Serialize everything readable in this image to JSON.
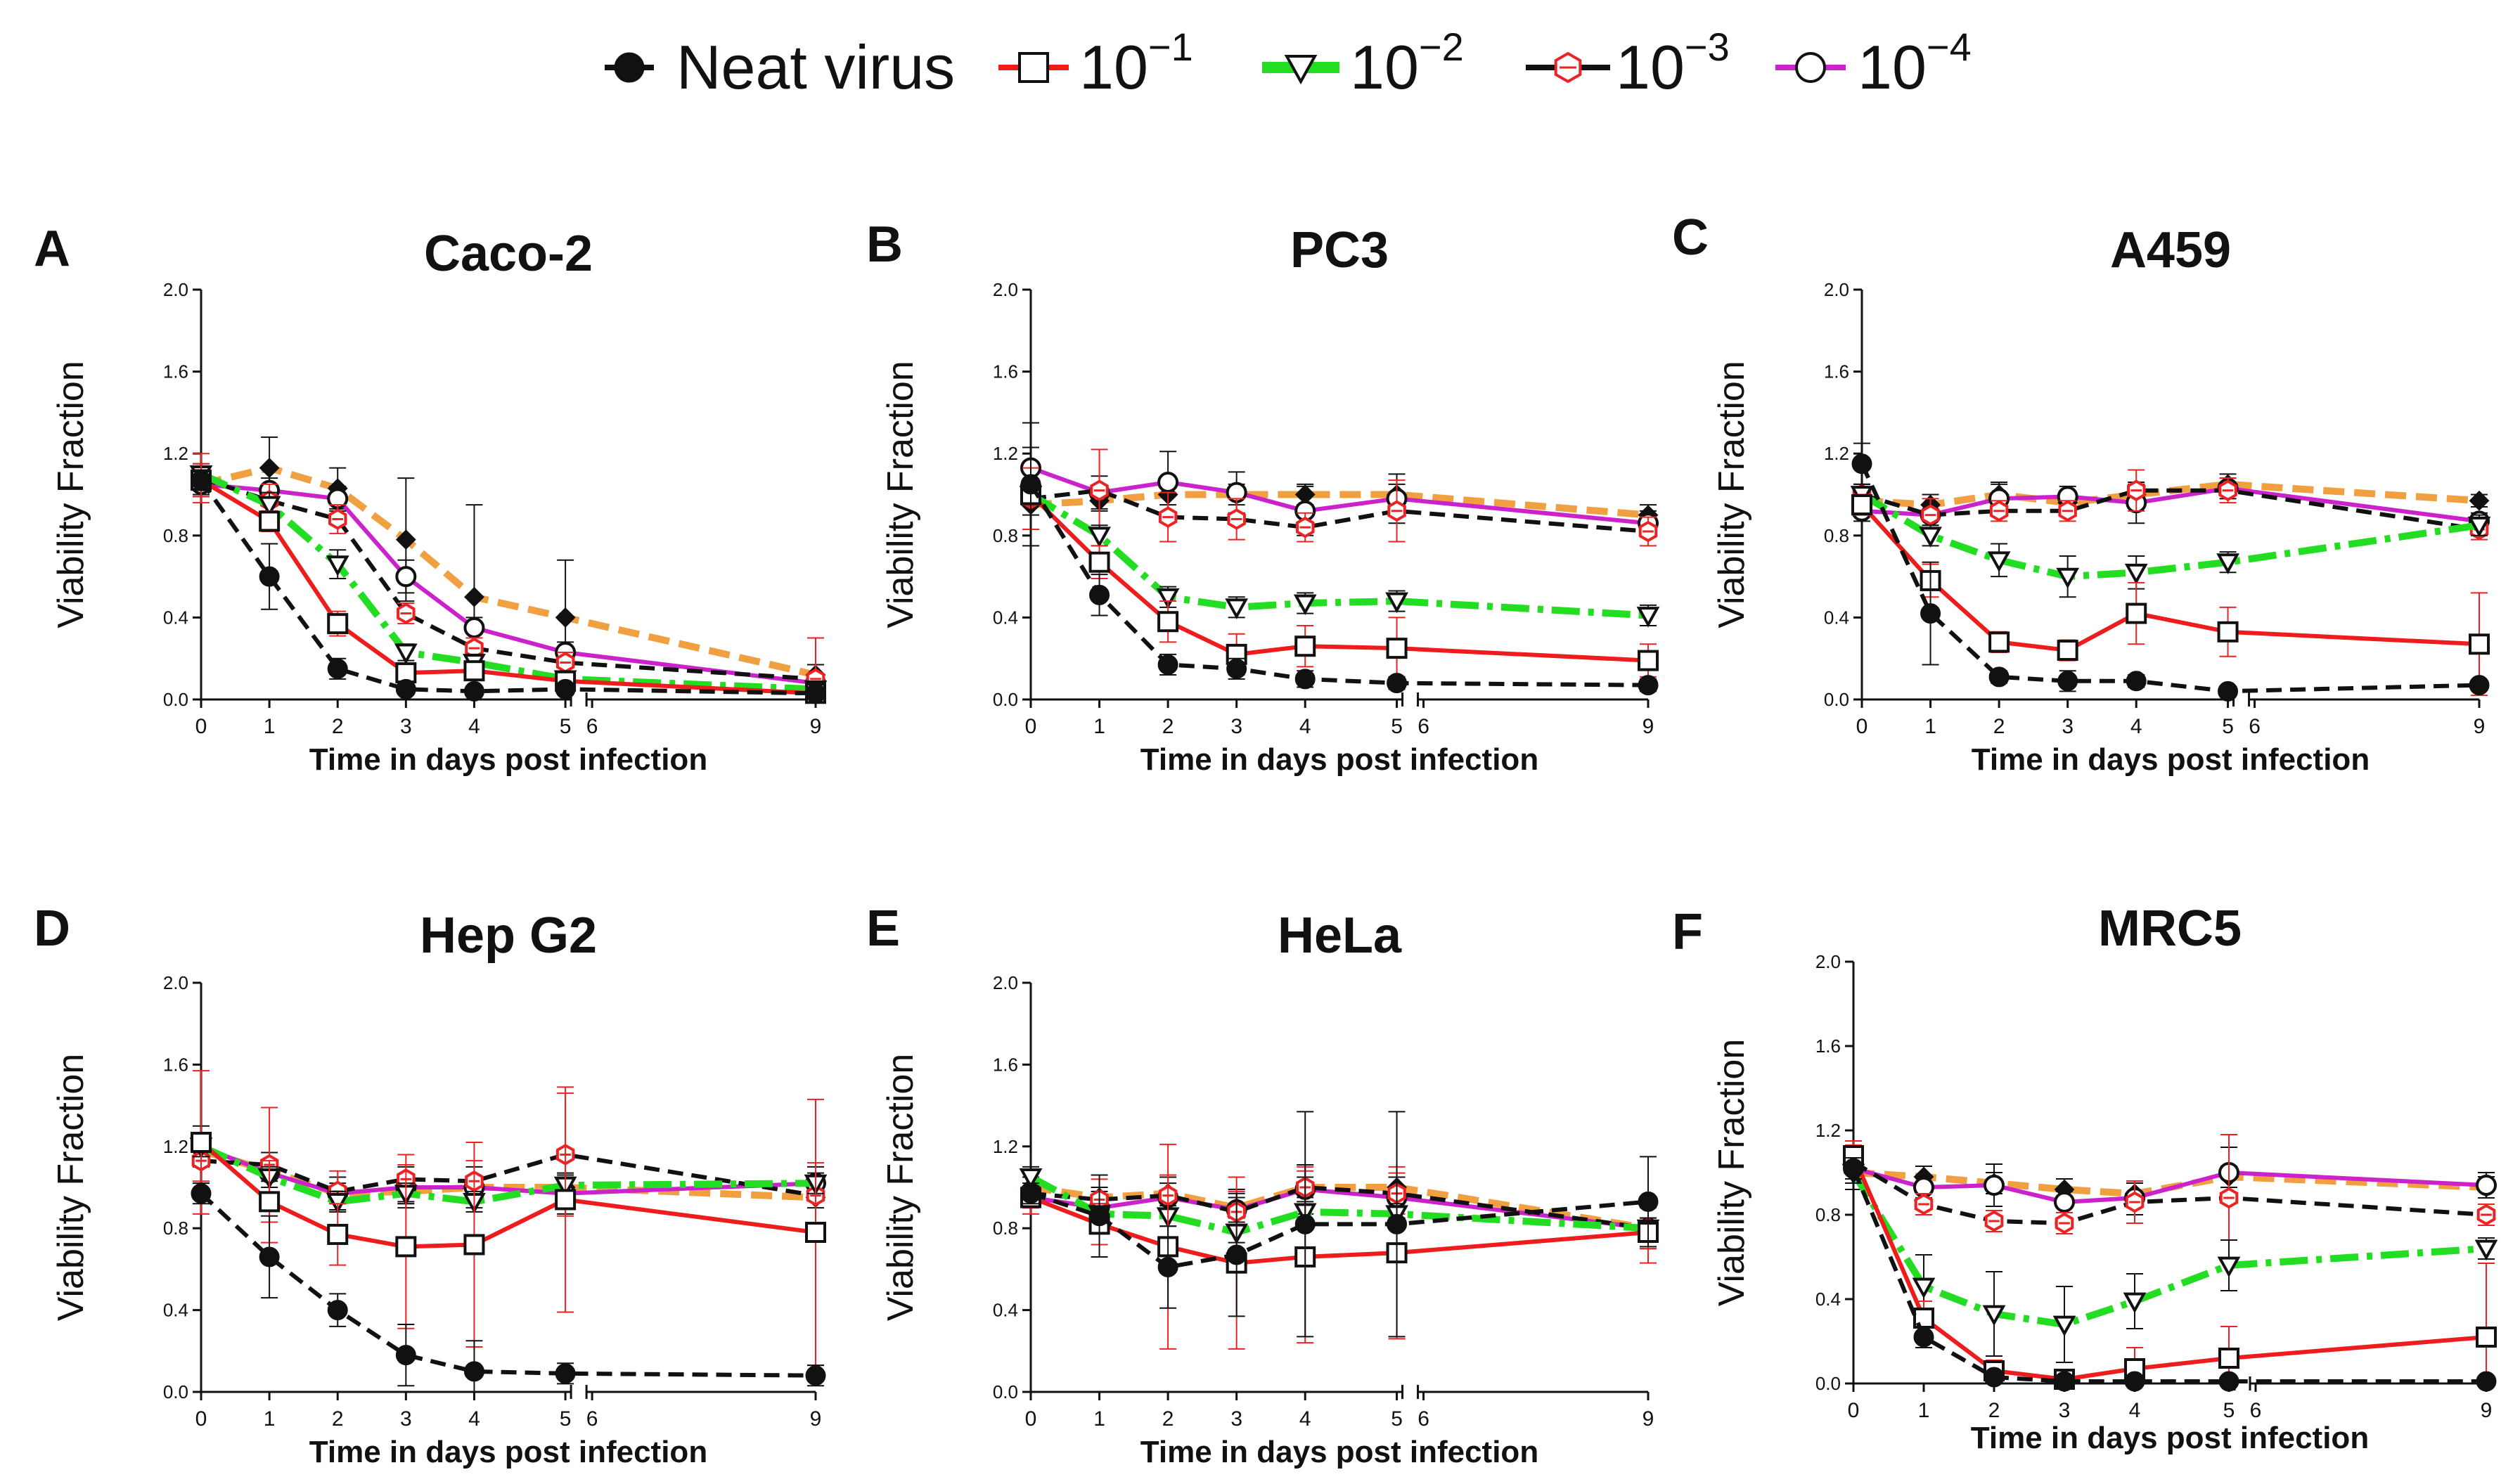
{
  "legend": [
    {
      "key": "neat",
      "label": "Neat virus",
      "sup": ""
    },
    {
      "key": "d1",
      "label": "10",
      "sup": "−1"
    },
    {
      "key": "d2",
      "label": "10",
      "sup": "−2"
    },
    {
      "key": "d3",
      "label": "10",
      "sup": "−3"
    },
    {
      "key": "d4",
      "label": "10",
      "sup": "−4"
    }
  ],
  "series_styles": {
    "neat": {
      "color": "#111111",
      "dash": "22,12",
      "marker": "filled-circle",
      "marker_color": "#111111"
    },
    "d1": {
      "color": "#ee1c1c",
      "dash": "",
      "marker": "open-square",
      "marker_color": "#111111"
    },
    "d2": {
      "color": "#22dd22",
      "dash": "40,12,8,12",
      "marker": "open-triangle-down",
      "marker_color": "#111111"
    },
    "d3": {
      "color": "#111111",
      "dash": "22,12",
      "marker": "red-hex",
      "marker_color": "#ee2222"
    },
    "d4": {
      "color": "#cc22cc",
      "dash": "",
      "marker": "open-circle",
      "marker_color": "#111111"
    },
    "extra": {
      "color": "#f0a040",
      "dash": "30,14",
      "marker": "filled-diamond",
      "marker_color": "#111111"
    }
  },
  "chart_data": [
    {
      "type": "line",
      "letter": "A",
      "title": "Caco-2",
      "xlabel": "Time in days post infection",
      "ylabel": "Viability Fraction",
      "ylim": [
        0,
        2.0
      ],
      "yticks": [
        "0.0",
        "0.4",
        "0.8",
        "1.2",
        "1.6",
        "2.0"
      ],
      "x": [
        0,
        1,
        2,
        3,
        4,
        5,
        6,
        9
      ],
      "xtick_labels": [
        "0",
        "1",
        "2",
        "3",
        "4",
        "5",
        "6",
        "9"
      ],
      "series": [
        {
          "name": "extra",
          "values": [
            1.05,
            1.13,
            1.03,
            0.78,
            0.5,
            0.4,
            null,
            0.12
          ],
          "errors": [
            0.06,
            0.15,
            0.1,
            0.3,
            0.45,
            0.28,
            null,
            0.05
          ]
        },
        {
          "name": "d4",
          "values": [
            1.05,
            1.02,
            0.98,
            0.6,
            0.35,
            0.23,
            null,
            0.08
          ],
          "errors": [
            0.05,
            0.06,
            0.06,
            0.08,
            0.05,
            0.05,
            null,
            0.04
          ]
        },
        {
          "name": "d3",
          "values": [
            1.08,
            0.97,
            0.88,
            0.42,
            0.25,
            0.18,
            null,
            0.1
          ],
          "errors": [
            0.12,
            0.08,
            0.07,
            0.05,
            0.05,
            0.05,
            null,
            0.2
          ]
        },
        {
          "name": "d2",
          "values": [
            1.1,
            0.95,
            0.66,
            0.23,
            0.18,
            0.1,
            null,
            0.05
          ],
          "errors": [
            0.05,
            0.06,
            0.07,
            0.04,
            0.04,
            0.03,
            null,
            0.02
          ]
        },
        {
          "name": "d1",
          "values": [
            1.07,
            0.87,
            0.37,
            0.13,
            0.14,
            0.09,
            null,
            0.03
          ],
          "errors": [
            0.08,
            0.05,
            0.06,
            0.03,
            0.03,
            0.03,
            null,
            0.02
          ]
        },
        {
          "name": "neat",
          "values": [
            1.07,
            0.6,
            0.15,
            0.05,
            0.04,
            0.05,
            null,
            0.03
          ],
          "errors": [
            0.05,
            0.16,
            0.05,
            0.02,
            0.02,
            0.02,
            null,
            0.02
          ]
        }
      ]
    },
    {
      "type": "line",
      "letter": "B",
      "title": "PC3",
      "xlabel": "Time in days post infection",
      "ylabel": "Viability Fraction",
      "ylim": [
        0,
        2.0
      ],
      "yticks": [
        "0.0",
        "0.4",
        "0.8",
        "1.2",
        "1.6",
        "2.0"
      ],
      "x": [
        0,
        1,
        2,
        3,
        4,
        5,
        6,
        9
      ],
      "xtick_labels": [
        "0",
        "1",
        "2",
        "3",
        "4",
        "5",
        "6",
        "9"
      ],
      "series": [
        {
          "name": "extra",
          "values": [
            0.95,
            0.97,
            1.0,
            1.0,
            1.0,
            1.0,
            null,
            0.9
          ],
          "errors": [
            0.05,
            0.05,
            0.05,
            0.05,
            0.05,
            0.05,
            null,
            0.05
          ]
        },
        {
          "name": "d4",
          "values": [
            1.13,
            1.01,
            1.06,
            1.01,
            0.92,
            0.98,
            null,
            0.86
          ],
          "errors": [
            0.1,
            0.08,
            0.15,
            0.1,
            0.12,
            0.12,
            null,
            0.06
          ]
        },
        {
          "name": "d3",
          "values": [
            0.98,
            1.02,
            0.89,
            0.88,
            0.84,
            0.92,
            null,
            0.82
          ],
          "errors": [
            0.15,
            0.2,
            0.12,
            0.1,
            0.07,
            0.15,
            null,
            0.07
          ]
        },
        {
          "name": "d2",
          "values": [
            1.0,
            0.8,
            0.5,
            0.45,
            0.47,
            0.48,
            null,
            0.41
          ],
          "errors": [
            0.05,
            0.05,
            0.05,
            0.05,
            0.05,
            0.05,
            null,
            0.05
          ]
        },
        {
          "name": "d1",
          "values": [
            1.0,
            0.67,
            0.38,
            0.22,
            0.26,
            0.25,
            null,
            0.19
          ],
          "errors": [
            0.05,
            0.08,
            0.1,
            0.1,
            0.1,
            0.15,
            null,
            0.08
          ]
        },
        {
          "name": "neat",
          "values": [
            1.05,
            0.51,
            0.17,
            0.15,
            0.1,
            0.08,
            null,
            0.07
          ],
          "errors": [
            0.3,
            0.1,
            0.05,
            0.05,
            0.04,
            0.03,
            null,
            0.03
          ]
        }
      ]
    },
    {
      "type": "line",
      "letter": "C",
      "title": "A459",
      "xlabel": "Time in days post infection",
      "ylabel": "Viability Fraction",
      "ylim": [
        0,
        2.0
      ],
      "yticks": [
        "0.0",
        "0.4",
        "0.8",
        "1.2",
        "1.6",
        "2.0"
      ],
      "x": [
        0,
        1,
        2,
        3,
        4,
        5,
        6,
        9
      ],
      "xtick_labels": [
        "0",
        "1",
        "2",
        "3",
        "4",
        "5",
        "6",
        "9"
      ],
      "series": [
        {
          "name": "extra",
          "values": [
            0.97,
            0.95,
            1.0,
            0.96,
            1.0,
            1.05,
            null,
            0.97
          ],
          "errors": [
            0.05,
            0.05,
            0.05,
            0.05,
            0.05,
            0.05,
            null,
            0.03
          ]
        },
        {
          "name": "d4",
          "values": [
            0.92,
            0.9,
            0.98,
            0.99,
            0.96,
            1.03,
            null,
            0.87
          ],
          "errors": [
            0.05,
            0.05,
            0.08,
            0.05,
            0.1,
            0.05,
            null,
            0.04
          ]
        },
        {
          "name": "d3",
          "values": [
            1.0,
            0.9,
            0.92,
            0.92,
            1.02,
            1.02,
            null,
            0.83
          ],
          "errors": [
            0.05,
            0.08,
            0.05,
            0.05,
            0.1,
            0.06,
            null,
            0.05
          ]
        },
        {
          "name": "d2",
          "values": [
            1.0,
            0.8,
            0.68,
            0.6,
            0.62,
            0.67,
            null,
            0.85
          ],
          "errors": [
            0.05,
            0.05,
            0.08,
            0.1,
            0.08,
            0.05,
            null,
            0.05
          ]
        },
        {
          "name": "d1",
          "values": [
            0.95,
            0.58,
            0.28,
            0.24,
            0.42,
            0.33,
            null,
            0.27
          ],
          "errors": [
            0.05,
            0.08,
            0.05,
            0.05,
            0.15,
            0.12,
            null,
            0.25
          ]
        },
        {
          "name": "neat",
          "values": [
            1.15,
            0.42,
            0.11,
            0.09,
            0.09,
            0.04,
            null,
            0.07
          ],
          "errors": [
            0.1,
            0.25,
            0.03,
            0.05,
            0.03,
            0.02,
            null,
            0.02
          ]
        }
      ]
    },
    {
      "type": "line",
      "letter": "D",
      "title": "Hep G2",
      "xlabel": "Time in days post infection",
      "ylabel": "Viability Fraction",
      "ylim": [
        0,
        2.0
      ],
      "yticks": [
        "0.0",
        "0.4",
        "0.8",
        "1.2",
        "1.6",
        "2.0"
      ],
      "x": [
        0,
        1,
        2,
        3,
        4,
        5,
        6,
        9
      ],
      "xtick_labels": [
        "0",
        "1",
        "2",
        "3",
        "4",
        "5",
        "6",
        "9"
      ],
      "series": [
        {
          "name": "extra",
          "values": [
            1.18,
            1.08,
            0.97,
            0.98,
            1.0,
            1.0,
            null,
            0.95
          ],
          "errors": [
            0.05,
            0.05,
            0.05,
            0.05,
            0.05,
            0.05,
            null,
            0.05
          ]
        },
        {
          "name": "d4",
          "values": [
            1.2,
            1.07,
            0.97,
            1.0,
            1.0,
            0.97,
            null,
            1.02
          ],
          "errors": [
            0.1,
            0.1,
            0.08,
            0.1,
            0.1,
            0.1,
            null,
            0.08
          ]
        },
        {
          "name": "d3",
          "values": [
            1.13,
            1.11,
            0.98,
            1.04,
            1.03,
            1.16,
            null,
            0.96
          ],
          "errors": [
            0.1,
            0.28,
            0.1,
            0.12,
            0.1,
            0.3,
            null,
            0.16
          ]
        },
        {
          "name": "d2",
          "values": [
            1.2,
            1.05,
            0.93,
            0.97,
            0.93,
            1.01,
            null,
            1.02
          ],
          "errors": [
            0.05,
            0.05,
            0.05,
            0.05,
            0.05,
            0.05,
            null,
            0.05
          ]
        },
        {
          "name": "d1",
          "values": [
            1.22,
            0.93,
            0.77,
            0.71,
            0.72,
            0.94,
            null,
            0.78
          ],
          "errors": [
            0.35,
            0.2,
            0.15,
            0.4,
            0.5,
            0.55,
            null,
            0.65
          ]
        },
        {
          "name": "neat",
          "values": [
            0.97,
            0.66,
            0.4,
            0.18,
            0.1,
            0.09,
            null,
            0.08
          ],
          "errors": [
            0.05,
            0.2,
            0.08,
            0.15,
            0.15,
            0.05,
            null,
            0.05
          ]
        }
      ]
    },
    {
      "type": "line",
      "letter": "E",
      "title": "HeLa",
      "xlabel": "Time in days post infection",
      "ylabel": "Viability Fraction",
      "ylim": [
        0,
        2.0
      ],
      "yticks": [
        "0.0",
        "0.4",
        "0.8",
        "1.2",
        "1.6",
        "2.0"
      ],
      "x": [
        0,
        1,
        2,
        3,
        4,
        5,
        6,
        9
      ],
      "xtick_labels": [
        "0",
        "1",
        "2",
        "3",
        "4",
        "5",
        "6",
        "9"
      ],
      "series": [
        {
          "name": "extra",
          "values": [
            1.0,
            0.95,
            0.97,
            0.9,
            1.0,
            1.0,
            null,
            0.8
          ],
          "errors": [
            0.05,
            0.05,
            0.05,
            0.05,
            0.05,
            0.05,
            null,
            0.05
          ]
        },
        {
          "name": "d4",
          "values": [
            0.95,
            0.9,
            0.95,
            0.89,
            0.99,
            0.95,
            null,
            0.8
          ],
          "errors": [
            0.05,
            0.08,
            0.1,
            0.1,
            0.12,
            0.1,
            null,
            0.1
          ]
        },
        {
          "name": "d3",
          "values": [
            0.97,
            0.94,
            0.96,
            0.88,
            1.0,
            0.97,
            null,
            0.8
          ],
          "errors": [
            0.1,
            0.1,
            0.1,
            0.1,
            0.1,
            0.1,
            null,
            0.1
          ]
        },
        {
          "name": "d2",
          "values": [
            1.05,
            0.87,
            0.86,
            0.78,
            0.88,
            0.87,
            null,
            0.8
          ],
          "errors": [
            0.05,
            0.05,
            0.05,
            0.05,
            0.05,
            0.05,
            null,
            0.05
          ]
        },
        {
          "name": "d1",
          "values": [
            0.95,
            0.82,
            0.71,
            0.63,
            0.66,
            0.68,
            null,
            0.78
          ],
          "errors": [
            0.05,
            0.1,
            0.5,
            0.42,
            0.42,
            0.42,
            null,
            0.15
          ]
        },
        {
          "name": "neat",
          "values": [
            0.97,
            0.86,
            0.61,
            0.67,
            0.82,
            0.82,
            null,
            0.93
          ],
          "errors": [
            0.05,
            0.2,
            0.2,
            0.3,
            0.55,
            0.55,
            null,
            0.22
          ]
        }
      ]
    },
    {
      "type": "line",
      "letter": "F",
      "title": "MRC5",
      "xlabel": "Time in days post infection",
      "ylabel": "Viability Fraction",
      "ylim": [
        0,
        2.0
      ],
      "yticks": [
        "0.0",
        "0.4",
        "0.8",
        "1.2",
        "1.6",
        "2.0"
      ],
      "x": [
        0,
        1,
        2,
        3,
        4,
        5,
        6,
        9
      ],
      "xtick_labels": [
        "0",
        "1",
        "2",
        "3",
        "4",
        "5",
        "6",
        "9"
      ],
      "series": [
        {
          "name": "extra",
          "values": [
            1.0,
            0.98,
            0.95,
            0.92,
            0.9,
            0.98,
            null,
            0.93
          ],
          "errors": [
            0.05,
            0.05,
            0.05,
            0.05,
            0.05,
            0.05,
            null,
            0.05
          ]
        },
        {
          "name": "d4",
          "values": [
            1.02,
            0.93,
            0.94,
            0.86,
            0.88,
            1.0,
            null,
            0.94
          ],
          "errors": [
            0.1,
            0.05,
            0.1,
            0.05,
            0.08,
            0.12,
            null,
            0.06
          ]
        },
        {
          "name": "d3",
          "values": [
            1.05,
            0.85,
            0.77,
            0.76,
            0.86,
            0.88,
            null,
            0.8
          ],
          "errors": [
            0.1,
            0.05,
            0.05,
            0.05,
            0.1,
            0.3,
            null,
            0.05
          ]
        },
        {
          "name": "d2",
          "values": [
            1.0,
            0.46,
            0.33,
            0.28,
            0.39,
            0.56,
            null,
            0.64
          ],
          "errors": [
            0.05,
            0.15,
            0.2,
            0.18,
            0.13,
            0.12,
            null,
            0.05
          ]
        },
        {
          "name": "d1",
          "values": [
            1.08,
            0.31,
            0.06,
            0.02,
            0.07,
            0.12,
            null,
            0.22
          ],
          "errors": [
            0.05,
            0.08,
            0.05,
            0.03,
            0.1,
            0.15,
            null,
            0.35
          ]
        },
        {
          "name": "neat",
          "values": [
            1.02,
            0.22,
            0.03,
            0.01,
            0.01,
            0.01,
            null,
            0.01
          ],
          "errors": [
            0.05,
            0.05,
            0.02,
            0.02,
            0.02,
            0.02,
            null,
            0.02
          ]
        }
      ]
    }
  ]
}
